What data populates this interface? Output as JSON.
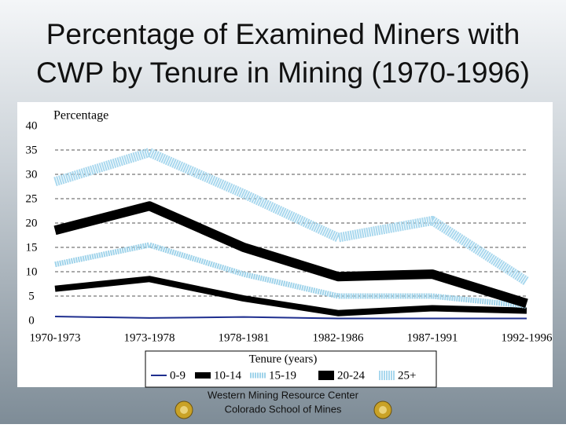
{
  "chart_data": {
    "type": "line",
    "title": [
      "Percentage of Examined Miners with",
      "CWP by Tenure in Mining (1970-1996)"
    ],
    "y_label": "Percentage",
    "x_label": "Tenure (years)",
    "categories": [
      "1970-1973",
      "1973-1978",
      "1978-1981",
      "1982-1986",
      "1987-1991",
      "1992-1996"
    ],
    "series": [
      {
        "name": "0-9",
        "color": "#1f2f8f",
        "values": [
          0.8,
          0.5,
          0.7,
          0.4,
          0.4,
          0.4
        ]
      },
      {
        "name": "10-14",
        "color": "#000000",
        "values": [
          6.5,
          8.5,
          4.5,
          1.5,
          2.5,
          2.0
        ]
      },
      {
        "name": "15-19",
        "color": "#9fd3ea",
        "values": [
          11.5,
          15.5,
          9.5,
          5,
          5,
          3
        ]
      },
      {
        "name": "20-24",
        "color": "#000000",
        "values": [
          18.5,
          23.5,
          15,
          9,
          9.5,
          3.5
        ]
      },
      {
        "name": "25+",
        "color": "#a9d8ee",
        "values": [
          28.5,
          34.5,
          26,
          17,
          20.5,
          8
        ]
      }
    ],
    "ylim": [
      0,
      40
    ],
    "yticks": [
      0,
      5,
      10,
      15,
      20,
      25,
      30,
      35,
      40
    ],
    "grid": true,
    "legend": "bottom"
  },
  "footer": [
    "Western Mining Resource Center",
    "Colorado School of Mines"
  ]
}
